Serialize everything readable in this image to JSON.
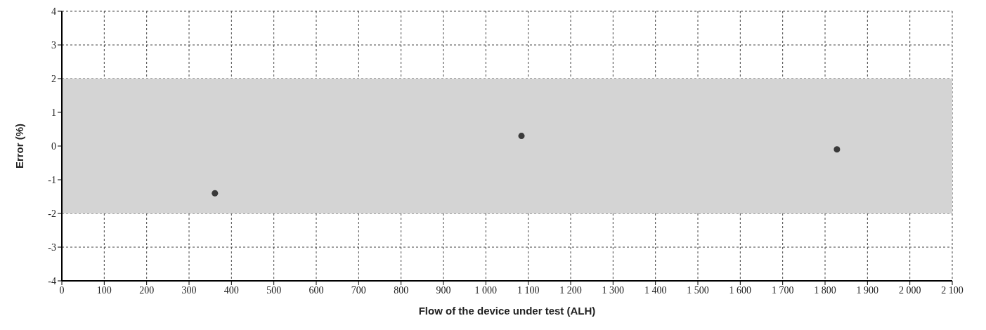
{
  "chart_data": {
    "type": "scatter",
    "xlabel": "Flow of the device under test (ALH)",
    "ylabel": "Error (%)",
    "x": [
      361,
      1084,
      1828
    ],
    "series": [
      {
        "color": "#3a3a3a",
        "values": [
          -1.4,
          0.3,
          -0.1
        ]
      }
    ],
    "marker": "circle",
    "grid": true,
    "xlim": [
      0,
      2100
    ],
    "ylim": [
      -4,
      4
    ],
    "xticks": [
      0,
      100,
      200,
      300,
      400,
      500,
      600,
      700,
      800,
      900,
      {
        "value": 1000,
        "label": "1 000"
      },
      {
        "value": 1100,
        "label": "1 100"
      },
      {
        "value": 1200,
        "label": "1 200"
      },
      {
        "value": 1300,
        "label": "1 300"
      },
      {
        "value": 1400,
        "label": "1 400"
      },
      {
        "value": 1500,
        "label": "1 500"
      },
      {
        "value": 1600,
        "label": "1 600"
      },
      {
        "value": 1700,
        "label": "1 700"
      },
      {
        "value": 1800,
        "label": "1 800"
      },
      {
        "value": 1900,
        "label": "1 900"
      },
      {
        "value": 2000,
        "label": "2 000"
      },
      {
        "value": 2100,
        "label": "2 100"
      }
    ],
    "yticks": [
      -4,
      -3,
      -2,
      -1,
      0,
      1,
      2,
      3,
      4
    ],
    "bands": [
      {
        "axis": "y",
        "from": -2,
        "to": 2,
        "color": "#d4d4d4"
      }
    ]
  }
}
